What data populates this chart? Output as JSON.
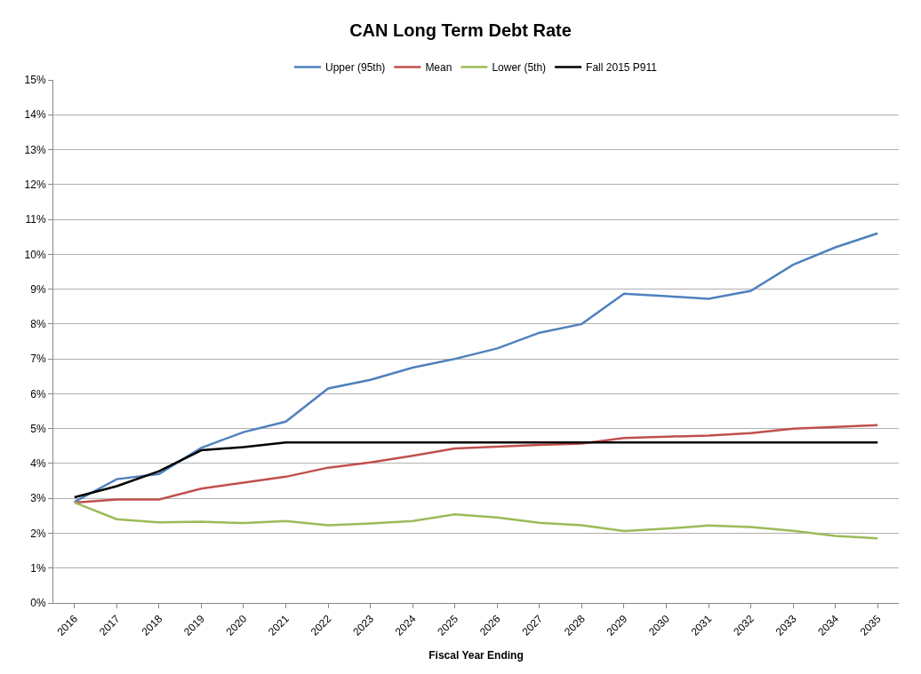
{
  "chart_data": {
    "type": "line",
    "title": "CAN Long Term Debt Rate",
    "xlabel": "Fiscal Year Ending",
    "categories": [
      "2016",
      "2017",
      "2018",
      "2019",
      "2020",
      "2021",
      "2022",
      "2023",
      "2024",
      "2025",
      "2026",
      "2027",
      "2028",
      "2029",
      "2030",
      "2031",
      "2032",
      "2033",
      "2034",
      "2035"
    ],
    "series": [
      {
        "name": "Upper (95th)",
        "color": "#4f81bd",
        "values": [
          2.9,
          3.55,
          3.7,
          4.45,
          4.9,
          5.2,
          6.15,
          6.4,
          6.75,
          7.0,
          7.3,
          7.75,
          8.0,
          8.87,
          8.8,
          8.72,
          8.95,
          9.7,
          10.2,
          10.6
        ]
      },
      {
        "name": "Mean",
        "color": "#c0504d",
        "values": [
          2.88,
          2.97,
          2.97,
          3.28,
          3.45,
          3.62,
          3.88,
          4.03,
          4.22,
          4.43,
          4.48,
          4.53,
          4.57,
          4.73,
          4.77,
          4.8,
          4.87,
          5.0,
          5.05,
          5.1
        ]
      },
      {
        "name": "Lower (5th)",
        "color": "#9bbb59",
        "values": [
          2.88,
          2.4,
          2.31,
          2.33,
          2.29,
          2.35,
          2.23,
          2.28,
          2.35,
          2.54,
          2.45,
          2.3,
          2.23,
          2.06,
          2.13,
          2.22,
          2.18,
          2.07,
          1.92,
          1.85
        ]
      },
      {
        "name": "Fall 2015 P911",
        "color": "#000000",
        "values": [
          3.03,
          3.35,
          3.78,
          4.38,
          4.47,
          4.6,
          4.6,
          4.6,
          4.6,
          4.6,
          4.6,
          4.6,
          4.6,
          4.6,
          4.6,
          4.6,
          4.6,
          4.6,
          4.6,
          4.6
        ]
      }
    ],
    "ylim": [
      0,
      15
    ],
    "yticks": [
      {
        "value": 0,
        "label": "0%"
      },
      {
        "value": 1,
        "label": "1%"
      },
      {
        "value": 2,
        "label": "2%"
      },
      {
        "value": 3,
        "label": "3%"
      },
      {
        "value": 4,
        "label": "4%"
      },
      {
        "value": 5,
        "label": "5%"
      },
      {
        "value": 6,
        "label": "6%"
      },
      {
        "value": 7,
        "label": "7%"
      },
      {
        "value": 8,
        "label": "8%"
      },
      {
        "value": 9,
        "label": "9%"
      },
      {
        "value": 10,
        "label": "10%"
      },
      {
        "value": 11,
        "label": "11%"
      },
      {
        "value": 12,
        "label": "12%"
      },
      {
        "value": 13,
        "label": "13%"
      },
      {
        "value": 14,
        "label": "14%"
      },
      {
        "value": 15,
        "label": "15%"
      }
    ],
    "grid": "y",
    "legend": "top",
    "marker": "none",
    "line_style": "solid"
  }
}
